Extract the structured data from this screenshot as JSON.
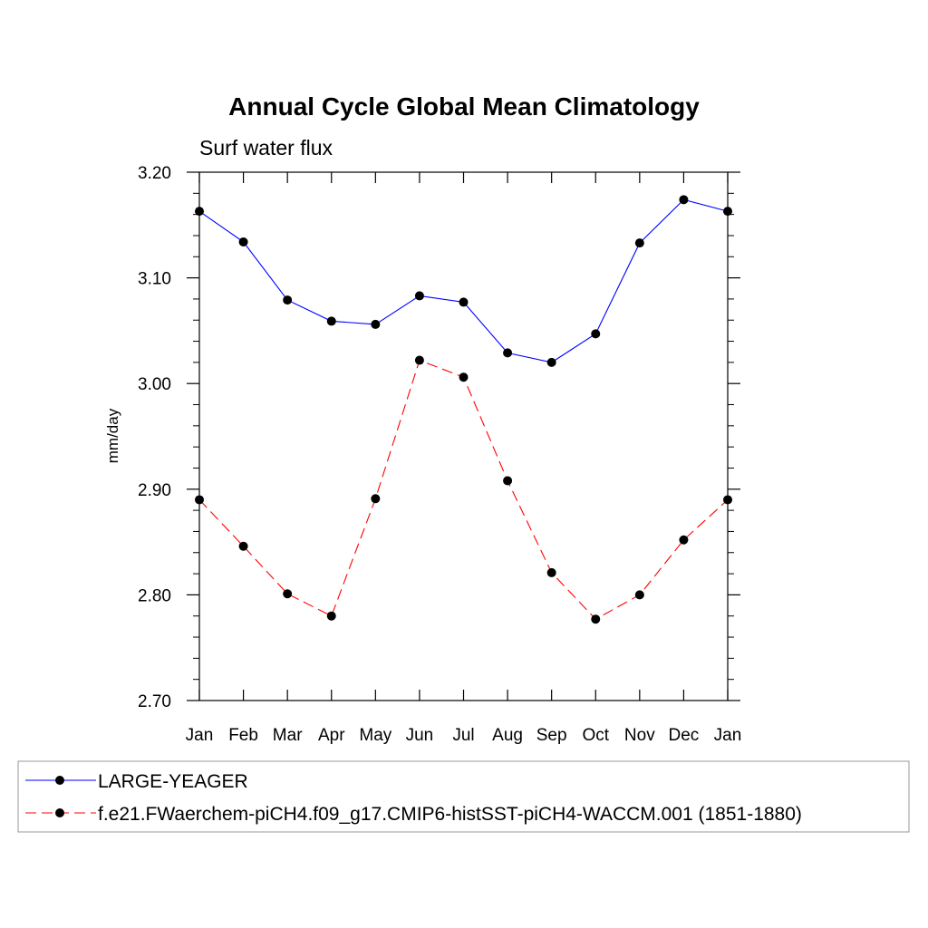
{
  "chart_data": {
    "type": "line",
    "title": "Annual Cycle Global Mean Climatology",
    "subtitle": "Surf water flux",
    "xlabel": "",
    "ylabel": "mm/day",
    "ylim": [
      2.7,
      3.2
    ],
    "yticks": [
      "2.70",
      "2.80",
      "2.90",
      "3.00",
      "3.10",
      "3.20"
    ],
    "categories": [
      "Jan",
      "Feb",
      "Mar",
      "Apr",
      "May",
      "Jun",
      "Jul",
      "Aug",
      "Sep",
      "Oct",
      "Nov",
      "Dec",
      "Jan"
    ],
    "series": [
      {
        "name": "LARGE-YEAGER",
        "color": "#0000ff",
        "dash": "solid",
        "values": [
          3.163,
          3.134,
          3.079,
          3.059,
          3.056,
          3.083,
          3.077,
          3.029,
          3.02,
          3.047,
          3.133,
          3.174,
          3.163
        ]
      },
      {
        "name": "f.e21.FWaerchem-piCH4.f09_g17.CMIP6-histSST-piCH4-WACCM.001 (1851-1880)",
        "color": "#ff0000",
        "dash": "dashed",
        "values": [
          2.89,
          2.846,
          2.801,
          2.78,
          2.891,
          3.022,
          3.006,
          2.908,
          2.821,
          2.777,
          2.8,
          2.852,
          2.89
        ]
      }
    ],
    "legend_position": "bottom"
  }
}
